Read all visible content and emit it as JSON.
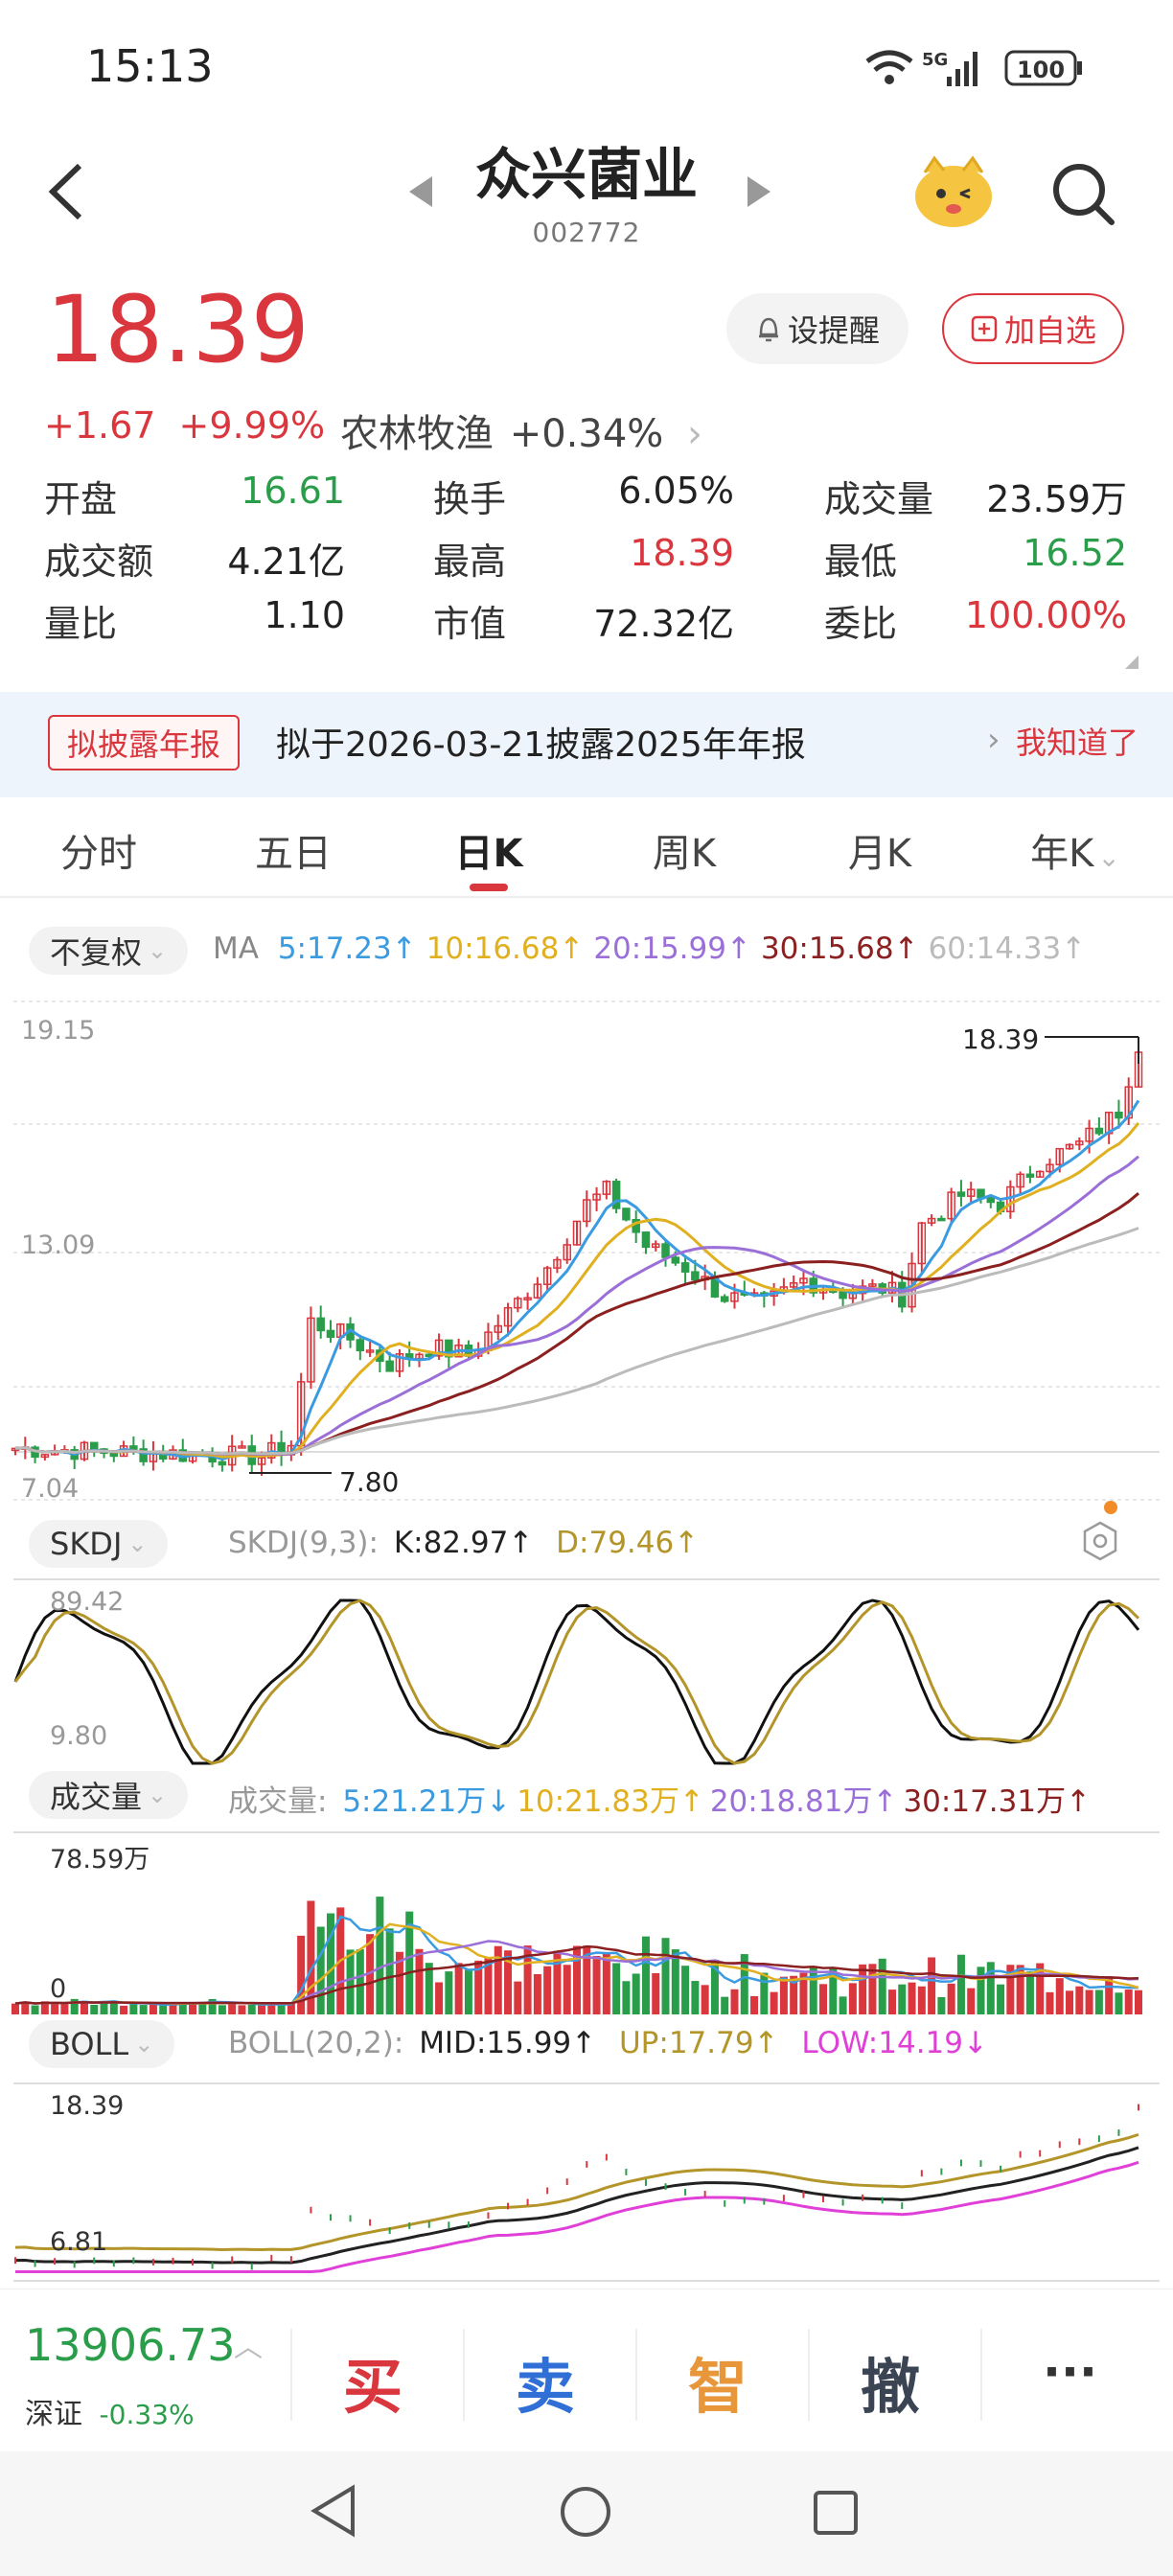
{
  "status_bar": {
    "time": "15:13",
    "signal": "5G",
    "battery": "100"
  },
  "header": {
    "title": "众兴菌业",
    "code": "002772"
  },
  "quote": {
    "price": "18.39",
    "change": "+1.67",
    "change_pct": "+9.99%",
    "sector_name": "农林牧渔",
    "sector_change": "+0.34%",
    "alert_label": "设提醒",
    "watch_label": "加自选"
  },
  "stats": [
    {
      "label": "开盘",
      "value": "16.61",
      "color": "#2a9d4a"
    },
    {
      "label": "换手",
      "value": "6.05%",
      "color": "#222222"
    },
    {
      "label": "成交量",
      "value": "23.59万",
      "color": "#222222"
    },
    {
      "label": "成交额",
      "value": "4.21亿",
      "color": "#222222"
    },
    {
      "label": "最高",
      "value": "18.39",
      "color": "#d9363e"
    },
    {
      "label": "最低",
      "value": "16.52",
      "color": "#2a9d4a"
    },
    {
      "label": "量比",
      "value": "1.10",
      "color": "#222222"
    },
    {
      "label": "市值",
      "value": "72.32亿",
      "color": "#222222"
    },
    {
      "label": "委比",
      "value": "100.00%",
      "color": "#d9363e"
    }
  ],
  "banner": {
    "tag": "拟披露年报",
    "text": "拟于2026-03-21披露2025年年报",
    "action": "我知道了"
  },
  "tabs": [
    "分时",
    "五日",
    "日K",
    "周K",
    "月K",
    "年K"
  ],
  "active_tab": "日K",
  "kline": {
    "adjust_label": "不复权",
    "ma_title": "MA",
    "ma": [
      {
        "label": "5:17.23↑",
        "color": "#3b9be0"
      },
      {
        "label": "10:16.68↑",
        "color": "#e0b020"
      },
      {
        "label": "20:15.99↑",
        "color": "#9b6fd8"
      },
      {
        "label": "30:15.68↑",
        "color": "#8b2020"
      },
      {
        "label": "60:14.33↑",
        "color": "#bbbbbb"
      }
    ],
    "y_top": "19.15",
    "y_mid": "13.09",
    "y_bottom": "7.04",
    "high_marker": "18.39",
    "low_marker": "7.80"
  },
  "skdj": {
    "name": "SKDJ",
    "params": "SKDJ(9,3):",
    "k": "K:82.97↑",
    "d": "D:79.46↑",
    "y_top": "89.42",
    "y_bottom": "9.80"
  },
  "volume": {
    "name": "成交量",
    "prefix": "成交量:",
    "ma": [
      {
        "label": "5:21.21万↓",
        "color": "#3b9be0"
      },
      {
        "label": "10:21.83万↑",
        "color": "#e0b020"
      },
      {
        "label": "20:18.81万↑",
        "color": "#9b6fd8"
      },
      {
        "label": "30:17.31万↑",
        "color": "#8b2020"
      }
    ],
    "y_top": "78.59万",
    "y_bottom": "0"
  },
  "boll": {
    "name": "BOLL",
    "params": "BOLL(20,2):",
    "mid": "MID:15.99↑",
    "up": "UP:17.79↑",
    "low": "LOW:14.19↓",
    "y_top": "18.39",
    "y_bottom": "6.81"
  },
  "index": {
    "value": "13906.73",
    "name": "深证",
    "change": "-0.33%"
  },
  "actions": [
    {
      "label": "买",
      "color": "#d9363e"
    },
    {
      "label": "卖",
      "color": "#2f6fd6"
    },
    {
      "label": "智",
      "color": "#e8963a"
    },
    {
      "label": "撤",
      "color": "#3b4453"
    }
  ],
  "more_label": "···"
}
